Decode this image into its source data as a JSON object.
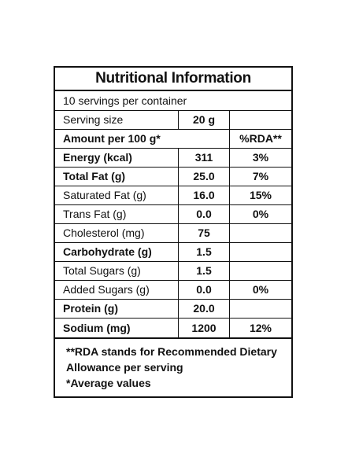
{
  "title": "Nutritional Information",
  "servings_per_container": "10 servings per container",
  "serving_size": {
    "label": "Serving size",
    "value": "20 g"
  },
  "amount_header": {
    "label": "Amount per 100 g*",
    "rda": "%RDA**"
  },
  "rows": [
    {
      "name": "Energy (kcal)",
      "value": "311",
      "rda": "3%",
      "bold": true
    },
    {
      "name": "Total Fat (g)",
      "value": "25.0",
      "rda": "7%",
      "bold": true
    },
    {
      "name": "Saturated Fat (g)",
      "value": "16.0",
      "rda": "15%",
      "bold": false
    },
    {
      "name": "Trans Fat (g)",
      "value": "0.0",
      "rda": "0%",
      "bold": false
    },
    {
      "name": "Cholesterol (mg)",
      "value": "75",
      "rda": "",
      "bold": false
    },
    {
      "name": "Carbohydrate (g)",
      "value": "1.5",
      "rda": "",
      "bold": true
    },
    {
      "name": "Total Sugars (g)",
      "value": "1.5",
      "rda": "",
      "bold": false
    },
    {
      "name": "Added Sugars (g)",
      "value": "0.0",
      "rda": "0%",
      "bold": false
    },
    {
      "name": "Protein (g)",
      "value": "20.0",
      "rda": "",
      "bold": true
    },
    {
      "name": "Sodium (mg)",
      "value": "1200",
      "rda": "12%",
      "bold": true
    }
  ],
  "footer": {
    "line1": "**RDA stands for Recommended Dietary",
    "line2": "Allowance per serving",
    "line3": "*Average values"
  }
}
